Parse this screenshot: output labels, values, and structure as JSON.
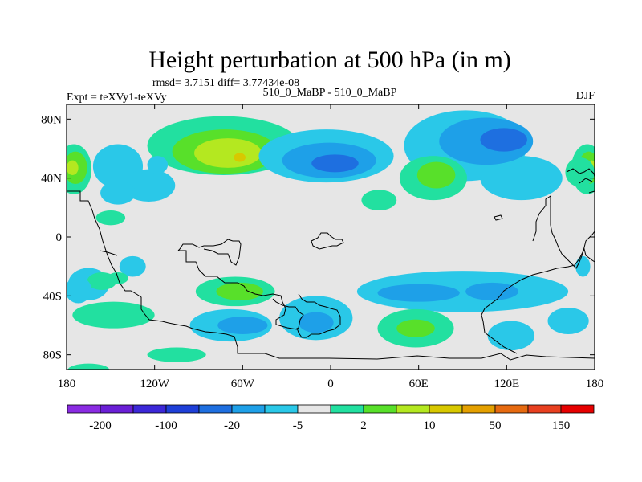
{
  "chart_data": {
    "type": "heatmap",
    "title": "Height perturbation at 500 hPa (in m)",
    "stats_line": "rmsd= 3.7151 diff= 3.77434e-08",
    "left_label": "Expt = teXVy1-teXVy",
    "center_label": "510_0_MaBP - 510_0_MaBP",
    "right_label": "DJF",
    "xlim": [
      -180,
      180
    ],
    "ylim": [
      -90,
      90
    ],
    "x_ticks": [
      {
        "value": -180,
        "label": "180"
      },
      {
        "value": -120,
        "label": "120W"
      },
      {
        "value": -60,
        "label": "60W"
      },
      {
        "value": 0,
        "label": "0"
      },
      {
        "value": 60,
        "label": "60E"
      },
      {
        "value": 120,
        "label": "120E"
      },
      {
        "value": 180,
        "label": "180"
      }
    ],
    "y_ticks": [
      {
        "value": 80,
        "label": "80N"
      },
      {
        "value": 40,
        "label": "40N"
      },
      {
        "value": 0,
        "label": "0"
      },
      {
        "value": -40,
        "label": "40S"
      },
      {
        "value": -80,
        "label": "80S"
      }
    ],
    "colorbar": {
      "colors": [
        "#8a2be2",
        "#6a1fd6",
        "#3c28d8",
        "#1e3fd8",
        "#1e6fe0",
        "#1ea0e8",
        "#2ac8e8",
        "#e6e6e6",
        "#22e0a0",
        "#58e02a",
        "#b4e820",
        "#d8c800",
        "#e4a000",
        "#e66a10",
        "#e84020",
        "#e60000"
      ],
      "labels": [
        "-200",
        "-100",
        "-20",
        "-5",
        "2",
        "10",
        "50",
        "150"
      ]
    },
    "colors": {
      "background": "#e6e6e6",
      "pos1": "#22e0a0",
      "pos2": "#58e02a",
      "pos3": "#b4e820",
      "pos4": "#d8c800",
      "neg1": "#2ac8e8",
      "neg2": "#1ea0e8",
      "neg3": "#1e6fe0"
    },
    "features": [
      {
        "kind": "pos1",
        "lon": -73,
        "lat": 62,
        "rlon": 52,
        "rlat": 20
      },
      {
        "kind": "pos2",
        "lon": -72,
        "lat": 58,
        "rlon": 36,
        "rlat": 15
      },
      {
        "kind": "pos3",
        "lon": -70,
        "lat": 57,
        "rlon": 23,
        "rlat": 10
      },
      {
        "kind": "pos4",
        "lon": -62,
        "lat": 54,
        "rlon": 4,
        "rlat": 3
      },
      {
        "kind": "pos1",
        "lon": -175,
        "lat": 46,
        "rlon": 12,
        "rlat": 17
      },
      {
        "kind": "pos2",
        "lon": -174,
        "lat": 47,
        "rlon": 8,
        "rlat": 11
      },
      {
        "kind": "pos3",
        "lon": -176,
        "lat": 47,
        "rlon": 4,
        "rlat": 5
      },
      {
        "kind": "pos1",
        "lon": 175,
        "lat": 46,
        "rlon": 11,
        "rlat": 17
      },
      {
        "kind": "pos2",
        "lon": 176,
        "lat": 47,
        "rlon": 7,
        "rlat": 11
      },
      {
        "kind": "pos3",
        "lon": 178,
        "lat": 47,
        "rlon": 3,
        "rlat": 5
      },
      {
        "kind": "neg1",
        "lon": -145,
        "lat": 48,
        "rlon": 17,
        "rlat": 15
      },
      {
        "kind": "neg1",
        "lon": -124,
        "lat": 35,
        "rlon": 18,
        "rlat": 11
      },
      {
        "kind": "neg1",
        "lon": -145,
        "lat": 30,
        "rlon": 12,
        "rlat": 8
      },
      {
        "kind": "neg1",
        "lon": -118,
        "lat": 49,
        "rlon": 7,
        "rlat": 6
      },
      {
        "kind": "pos1",
        "lon": -150,
        "lat": 13,
        "rlon": 10,
        "rlat": 5
      },
      {
        "kind": "neg1",
        "lon": -3,
        "lat": 55,
        "rlon": 46,
        "rlat": 18
      },
      {
        "kind": "neg2",
        "lon": -1,
        "lat": 52,
        "rlon": 32,
        "rlat": 12
      },
      {
        "kind": "neg3",
        "lon": 3,
        "lat": 50,
        "rlon": 16,
        "rlat": 6
      },
      {
        "kind": "neg1",
        "lon": 92,
        "lat": 62,
        "rlon": 42,
        "rlat": 24
      },
      {
        "kind": "neg1",
        "lon": 130,
        "lat": 40,
        "rlon": 28,
        "rlat": 15
      },
      {
        "kind": "neg2",
        "lon": 106,
        "lat": 65,
        "rlon": 32,
        "rlat": 16
      },
      {
        "kind": "neg3",
        "lon": 118,
        "lat": 66,
        "rlon": 16,
        "rlat": 8
      },
      {
        "kind": "pos1",
        "lon": 70,
        "lat": 40,
        "rlon": 23,
        "rlat": 15
      },
      {
        "kind": "pos2",
        "lon": 72,
        "lat": 42,
        "rlon": 13,
        "rlat": 9
      },
      {
        "kind": "pos1",
        "lon": 33,
        "lat": 25,
        "rlon": 12,
        "rlat": 7
      },
      {
        "kind": "pos1",
        "lon": 170,
        "lat": 44,
        "rlon": 10,
        "rlat": 10
      },
      {
        "kind": "neg1",
        "lon": -135,
        "lat": -20,
        "rlon": 9,
        "rlat": 7
      },
      {
        "kind": "neg1",
        "lon": -165,
        "lat": -32,
        "rlon": 14,
        "rlat": 11
      },
      {
        "kind": "neg1",
        "lon": 172,
        "lat": -20,
        "rlon": 5,
        "rlat": 7
      },
      {
        "kind": "pos1",
        "lon": -65,
        "lat": -37,
        "rlon": 27,
        "rlat": 10
      },
      {
        "kind": "pos2",
        "lon": -62,
        "lat": -37,
        "rlon": 16,
        "rlat": 6
      },
      {
        "kind": "pos1",
        "lon": -148,
        "lat": -53,
        "rlon": 28,
        "rlat": 9
      },
      {
        "kind": "pos1",
        "lon": -156,
        "lat": -30,
        "rlon": 10,
        "rlat": 6
      },
      {
        "kind": "neg1",
        "lon": -68,
        "lat": -60,
        "rlon": 28,
        "rlat": 11
      },
      {
        "kind": "neg2",
        "lon": -60,
        "lat": -60,
        "rlon": 17,
        "rlat": 6
      },
      {
        "kind": "neg1",
        "lon": -10,
        "lat": -55,
        "rlon": 25,
        "rlat": 15
      },
      {
        "kind": "neg2",
        "lon": -10,
        "lat": -58,
        "rlon": 12,
        "rlat": 7
      },
      {
        "kind": "neg1",
        "lon": 90,
        "lat": -37,
        "rlon": 72,
        "rlat": 14
      },
      {
        "kind": "neg2",
        "lon": 60,
        "lat": -38,
        "rlon": 28,
        "rlat": 6
      },
      {
        "kind": "neg2",
        "lon": 110,
        "lat": -37,
        "rlon": 18,
        "rlat": 6
      },
      {
        "kind": "pos1",
        "lon": 58,
        "lat": -62,
        "rlon": 26,
        "rlat": 13
      },
      {
        "kind": "pos2",
        "lon": 58,
        "lat": -62,
        "rlon": 13,
        "rlat": 6
      },
      {
        "kind": "neg1",
        "lon": 123,
        "lat": -67,
        "rlon": 16,
        "rlat": 10
      },
      {
        "kind": "pos1",
        "lon": -105,
        "lat": -80,
        "rlon": 20,
        "rlat": 5
      },
      {
        "kind": "pos1",
        "lon": -165,
        "lat": -90,
        "rlon": 14,
        "rlat": 4
      },
      {
        "kind": "pos1",
        "lon": -145,
        "lat": -28,
        "rlon": 7,
        "rlat": 4
      },
      {
        "kind": "neg1",
        "lon": 162,
        "lat": -57,
        "rlon": 14,
        "rlat": 9
      },
      {
        "kind": "neg1",
        "lon": -172,
        "lat": -36,
        "rlon": 9,
        "rlat": 9
      }
    ]
  }
}
